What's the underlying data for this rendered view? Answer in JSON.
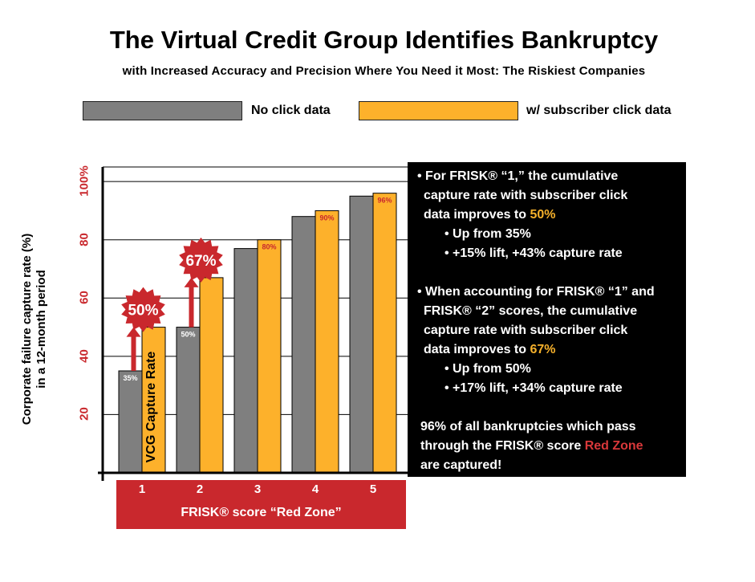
{
  "title": "The Virtual Credit Group Identifies Bankruptcy",
  "subtitle": "with Increased Accuracy and Precision Where You Need it Most: The Riskiest Companies",
  "legend": {
    "no_click": "No click data",
    "with_click": "w/ subscriber click data"
  },
  "colors": {
    "gray": "#7f7f7f",
    "orange": "#fdb12b",
    "red": "#c9282d"
  },
  "chart_data": {
    "type": "bar",
    "categories": [
      "1",
      "2",
      "3",
      "4",
      "5"
    ],
    "series": [
      {
        "name": "No click data",
        "values": [
          35,
          50,
          77,
          88,
          95
        ]
      },
      {
        "name": "w/ subscriber click data",
        "values": [
          50,
          67,
          80,
          90,
          96
        ]
      }
    ],
    "data_labels": {
      "no_click": [
        "35%",
        "50%",
        "",
        "",
        ""
      ],
      "with_click": [
        "",
        "",
        "80%",
        "90%",
        "96%"
      ]
    },
    "ylim": [
      0,
      105
    ],
    "yticks": [
      "20",
      "40",
      "60",
      "80",
      "100%"
    ],
    "ytick_values": [
      20,
      40,
      60,
      80,
      100
    ],
    "ylabel_line1": "Corporate failure capture rate (%)",
    "ylabel_line2": "in a 12-month period",
    "xlabel": "FRISK® score “Red Zone”",
    "grid": true,
    "annotations": [
      {
        "label": "50%",
        "category": "1",
        "value": 50
      },
      {
        "label": "67%",
        "category": "2",
        "value": 67
      }
    ],
    "inside_bar_text": "VCG Capture Rate"
  },
  "info": {
    "lines": [
      {
        "parts": [
          "• For FRISK® “1,” the cumulative"
        ]
      },
      {
        "parts": [
          "capture rate with subscriber click"
        ]
      },
      {
        "parts": [
          "data improves to ",
          "50%"
        ]
      },
      {
        "parts": [
          "• Up from 35%"
        ]
      },
      {
        "parts": [
          "• +15% lift, +43% capture rate"
        ]
      },
      {
        "parts": [
          "• When accounting for FRISK® “1” and"
        ]
      },
      {
        "parts": [
          "FRISK® “2” scores, the cumulative"
        ]
      },
      {
        "parts": [
          "capture rate with subscriber click"
        ]
      },
      {
        "parts": [
          "data improves to ",
          "67%"
        ]
      },
      {
        "parts": [
          "• Up from 50%"
        ]
      },
      {
        "parts": [
          "• +17% lift, +34% capture rate"
        ]
      },
      {
        "parts": [
          "96% of all bankruptcies which pass"
        ]
      },
      {
        "parts": [
          "through the FRISK® score ",
          "Red Zone"
        ]
      },
      {
        "parts": [
          "are captured!"
        ]
      }
    ]
  }
}
